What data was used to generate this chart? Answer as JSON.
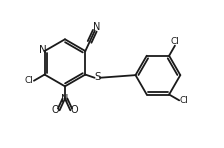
{
  "bg_color": "#ffffff",
  "line_color": "#1a1a1a",
  "lw": 1.3,
  "font_size": 7.0,
  "fig_width": 2.24,
  "fig_height": 1.48,
  "dpi": 100,
  "xlim": [
    0,
    10
  ],
  "ylim": [
    0,
    6.6
  ]
}
